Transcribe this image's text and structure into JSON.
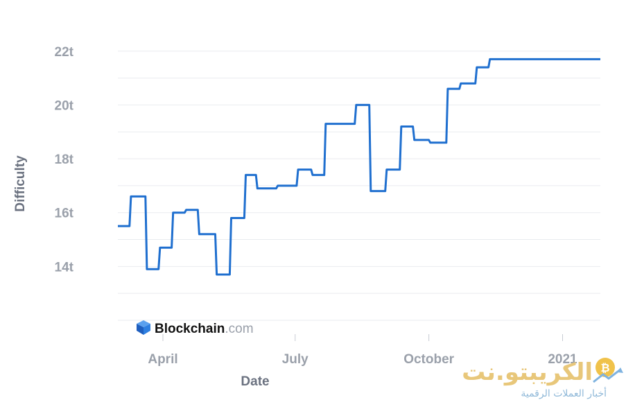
{
  "chart_data": {
    "type": "line",
    "xlabel": "Date",
    "ylabel": "Difficulty",
    "ylim": [
      12,
      22.2
    ],
    "yticks": [
      {
        "value": 14,
        "label": "14t"
      },
      {
        "value": 16,
        "label": "16t"
      },
      {
        "value": 18,
        "label": "18t"
      },
      {
        "value": 20,
        "label": "20t"
      },
      {
        "value": 22,
        "label": "22t"
      }
    ],
    "xlim": [
      "2020-03-01",
      "2021-01-27"
    ],
    "xticks": [
      {
        "date": "2020-04-01",
        "label": "April"
      },
      {
        "date": "2020-07-01",
        "label": "July"
      },
      {
        "date": "2020-10-01",
        "label": "October"
      },
      {
        "date": "2021-01-01",
        "label": "2021"
      }
    ],
    "grid": true,
    "color": "#1f6fcf",
    "series": [
      {
        "x": [
          "2020-03-01",
          "2020-03-09",
          "2020-03-10",
          "2020-03-20",
          "2020-03-21",
          "2020-03-29",
          "2020-03-30",
          "2020-04-07",
          "2020-04-08",
          "2020-04-16",
          "2020-04-17",
          "2020-04-25",
          "2020-04-26",
          "2020-05-07",
          "2020-05-08",
          "2020-05-17",
          "2020-05-18",
          "2020-05-27",
          "2020-05-28",
          "2020-06-04",
          "2020-06-05",
          "2020-06-18",
          "2020-06-19",
          "2020-07-02",
          "2020-07-03",
          "2020-07-12",
          "2020-07-13",
          "2020-07-21",
          "2020-07-22",
          "2020-07-31",
          "2020-08-01",
          "2020-08-11",
          "2020-08-12",
          "2020-08-21",
          "2020-08-22",
          "2020-09-01",
          "2020-09-02",
          "2020-09-11",
          "2020-09-12",
          "2020-09-20",
          "2020-09-21",
          "2020-10-01",
          "2020-10-02",
          "2020-10-13",
          "2020-10-14",
          "2020-10-22",
          "2020-10-23",
          "2020-11-02",
          "2020-11-03",
          "2020-11-11",
          "2020-11-12",
          "2020-11-21",
          "2020-11-22",
          "2020-12-01",
          "2020-12-02",
          "2020-12-10",
          "2020-12-11",
          "2020-12-20",
          "2020-12-21",
          "2021-01-02",
          "2021-01-03",
          "2021-01-11",
          "2021-01-12",
          "2021-01-23",
          "2021-01-24",
          "2021-01-27"
        ],
        "y": [
          15.5,
          15.5,
          16.6,
          16.6,
          13.9,
          13.9,
          14.7,
          14.7,
          16.0,
          16.0,
          16.1,
          16.1,
          15.2,
          15.2,
          13.7,
          13.7,
          15.8,
          15.8,
          17.4,
          17.4,
          16.9,
          16.9,
          17.0,
          17.0,
          17.6,
          17.6,
          17.4,
          17.4,
          19.3,
          19.3,
          19.3,
          19.3,
          20.0,
          20.0,
          16.8,
          16.8,
          17.6,
          17.6,
          19.2,
          19.2,
          18.7,
          18.7,
          18.6,
          18.6,
          20.6,
          20.6,
          20.8,
          20.8,
          21.4,
          21.4,
          21.7,
          21.7,
          21.7,
          21.7,
          21.7,
          21.7,
          21.7,
          21.7,
          21.7,
          21.7,
          21.7,
          21.7,
          21.7,
          21.7,
          21.7,
          21.7
        ]
      }
    ]
  },
  "logo": {
    "name": "Blockchain",
    "suffix": ".com"
  },
  "watermark": {
    "main": "الكريبتو.نت",
    "sub": "أخبار العملات الرقمية"
  }
}
